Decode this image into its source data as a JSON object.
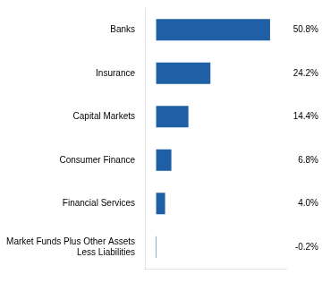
{
  "chart_data": {
    "type": "bar",
    "orientation": "horizontal",
    "categories": [
      "Money Market Funds Plus Other Assets\nLess Liabilities",
      "Financial Services",
      "Consumer Finance",
      "Capital Markets",
      "Insurance",
      "Banks"
    ],
    "values": [
      -0.2,
      4.0,
      6.8,
      14.4,
      24.2,
      50.8
    ],
    "value_labels": [
      "-0.2%",
      "4.0%",
      "6.8%",
      "14.4%",
      "24.2%",
      "50.8%"
    ],
    "data_labels": true,
    "color": "#1F5FA5",
    "xlim": [
      -5,
      58
    ],
    "tick_labels": "y",
    "grid": false
  }
}
